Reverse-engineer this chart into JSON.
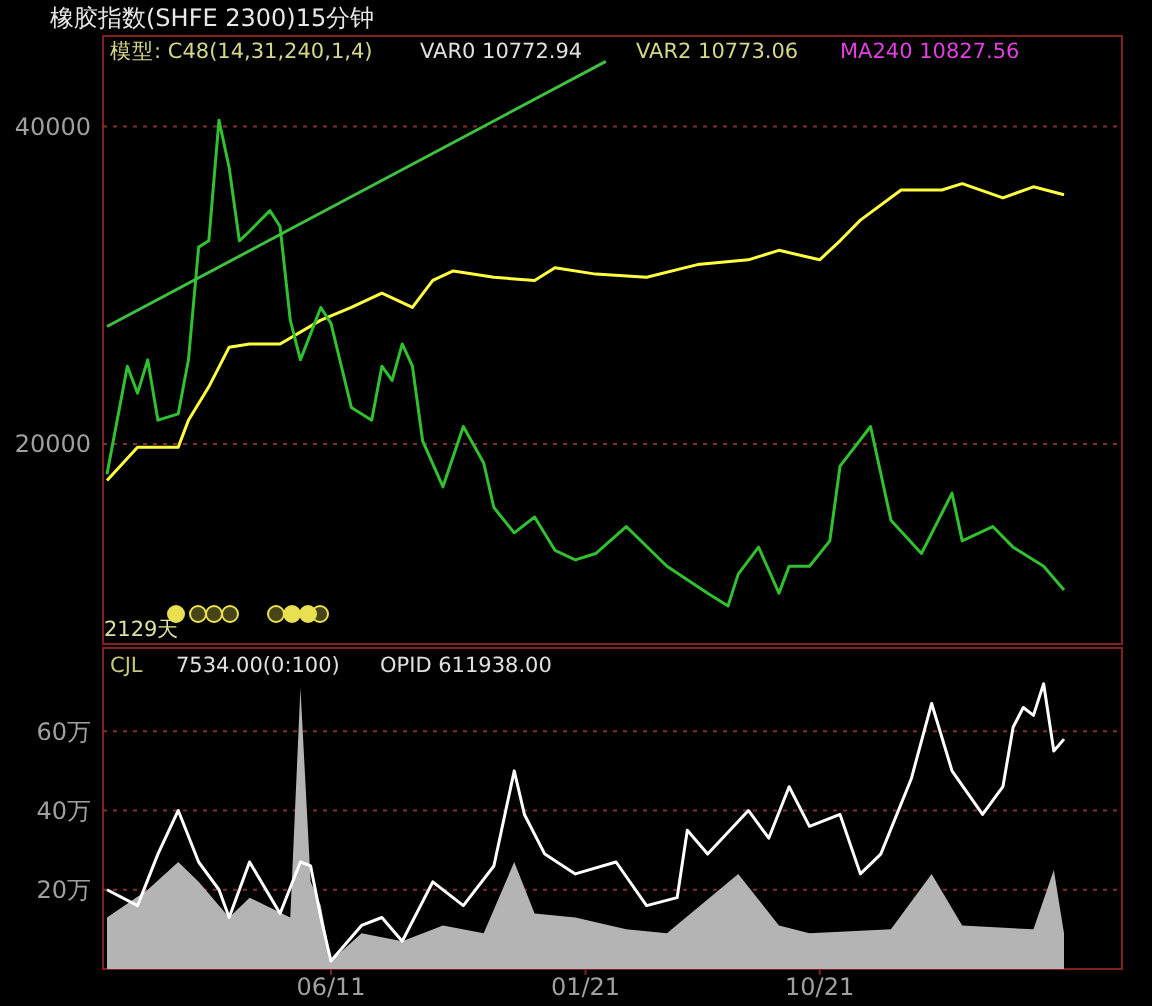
{
  "chart_data": [
    {
      "type": "line",
      "title": "橡胶指数(SHFE 2300)15分钟",
      "ylim": [
        7400,
        45700
      ],
      "yticks": [
        20000,
        40000
      ],
      "grid": "y",
      "tick_labels": "y",
      "categories": [
        null,
        null,
        null,
        null,
        null,
        null,
        null,
        null,
        null,
        null,
        null,
        null,
        null,
        null,
        null,
        null,
        null,
        null,
        null,
        null,
        null,
        null,
        null,
        null,
        null,
        null,
        null,
        null,
        null,
        null,
        null,
        null,
        null,
        null,
        null,
        null,
        null,
        null,
        null,
        null,
        null,
        null,
        null,
        null,
        null,
        null,
        null,
        null,
        null,
        null,
        null,
        null,
        null,
        null,
        null,
        null,
        null,
        null,
        null,
        null,
        null,
        null,
        null,
        null,
        null,
        null,
        null,
        null,
        null,
        null,
        null,
        null,
        null,
        null,
        null,
        null,
        null,
        null,
        null,
        null,
        null,
        null,
        null,
        null,
        null,
        null,
        null,
        null,
        null,
        null,
        null,
        null,
        null,
        null,
        null
      ],
      "annotations": [
        "模型: C48(14,31,240,1,4)",
        "VAR0 10772.94",
        "VAR2 10773.06",
        "MA240 10827.56",
        "2129天"
      ],
      "series": [
        {
          "color": "#ffff40",
          "values": [
            17700,
            null,
            null,
            19800,
            null,
            null,
            null,
            19800,
            21500,
            null,
            23600,
            null,
            26100,
            null,
            26300,
            null,
            null,
            26300,
            null,
            null,
            null,
            27800,
            null,
            null,
            28600,
            null,
            null,
            29500,
            null,
            null,
            28600,
            null,
            30300,
            null,
            30900,
            null,
            null,
            null,
            30500,
            null,
            null,
            null,
            30300,
            null,
            31100,
            null,
            null,
            null,
            30700,
            null,
            null,
            null,
            null,
            30500,
            null,
            null,
            null,
            null,
            31300,
            null,
            null,
            null,
            null,
            31600,
            null,
            null,
            32200,
            null,
            null,
            null,
            31600,
            null,
            32800,
            null,
            34100,
            null,
            null,
            null,
            36000,
            null,
            null,
            null,
            36000,
            null,
            36400,
            null,
            null,
            null,
            35500,
            null,
            null,
            36200,
            null,
            null,
            35700
          ]
        },
        {
          "color": "#30c030",
          "values": [
            18100,
            null,
            24900,
            23200,
            25300,
            21500,
            null,
            21900,
            25300,
            32400,
            32800,
            40400,
            37400,
            32800,
            33400,
            null,
            34700,
            33700,
            27800,
            25300,
            null,
            28600,
            27600,
            null,
            22300,
            null,
            21500,
            24900,
            24000,
            26300,
            24900,
            20200,
            null,
            17300,
            null,
            21100,
            null,
            18800,
            16000,
            null,
            14400,
            null,
            15400,
            null,
            13300,
            null,
            12700,
            null,
            13100,
            null,
            null,
            14800,
            null,
            null,
            null,
            12300,
            null,
            null,
            null,
            10600,
            null,
            9800,
            11800,
            null,
            13500,
            null,
            10600,
            12300,
            null,
            12300,
            null,
            13900,
            18600,
            null,
            null,
            21100,
            null,
            15200,
            null,
            null,
            13100,
            null,
            null,
            16900,
            13900,
            null,
            null,
            14800,
            null,
            13500,
            null,
            null,
            12300,
            null,
            10800
          ]
        },
        {
          "color": "#40c040",
          "values": [
            27400,
            null,
            null,
            null,
            null,
            null,
            null,
            null,
            null,
            null,
            null,
            null,
            null,
            null,
            null,
            null,
            null,
            null,
            null,
            null,
            null,
            null,
            null,
            null,
            null,
            null,
            null,
            null,
            null,
            null,
            null,
            null,
            null,
            null,
            null,
            null,
            null,
            null,
            null,
            null,
            null,
            null,
            null,
            null,
            null,
            null,
            null,
            null,
            null,
            44100,
            null,
            null,
            null,
            null,
            null,
            null,
            null,
            null,
            null,
            null,
            null,
            null,
            null,
            null,
            null,
            null,
            null,
            null,
            null,
            null,
            null,
            null,
            null,
            null,
            null,
            null,
            null,
            null,
            null,
            null,
            null,
            null,
            null,
            null,
            null,
            null,
            null,
            null,
            null,
            null,
            null,
            null,
            null,
            null,
            null
          ]
        }
      ]
    },
    {
      "type": "line",
      "ylim": [
        0,
        81
      ],
      "yticks": [
        {
          "value": 20,
          "label": "20万"
        },
        {
          "value": 40,
          "label": "40万"
        },
        {
          "value": 60,
          "label": "60万"
        }
      ],
      "grid": "y",
      "categories": [
        null,
        null,
        null,
        null,
        null,
        null,
        null,
        null,
        null,
        null,
        null,
        null,
        null,
        null,
        null,
        null,
        null,
        null,
        null,
        null,
        null,
        null,
        "06/11",
        null,
        null,
        null,
        null,
        null,
        null,
        null,
        null,
        null,
        null,
        null,
        null,
        null,
        null,
        null,
        null,
        null,
        null,
        null,
        null,
        null,
        null,
        null,
        null,
        "01/21",
        null,
        null,
        null,
        null,
        null,
        null,
        null,
        null,
        null,
        null,
        null,
        null,
        null,
        null,
        null,
        null,
        null,
        null,
        null,
        null,
        null,
        null,
        "10/21",
        null,
        null,
        null,
        null,
        null,
        null,
        null,
        null,
        null,
        null,
        null,
        null,
        null,
        null,
        null,
        null,
        null,
        null,
        null,
        null,
        null,
        null,
        null,
        null
      ],
      "annotations": [
        "CJL",
        "7534.00(0:100)",
        "OPID 611938.00"
      ],
      "series": [
        {
          "type": "area",
          "color": "#b4b4b4",
          "values": [
            13,
            null,
            null,
            null,
            20,
            null,
            null,
            27,
            null,
            22,
            null,
            null,
            13,
            null,
            18,
            null,
            null,
            null,
            13,
            71,
            22,
            16,
            2,
            null,
            null,
            9,
            null,
            null,
            null,
            7,
            null,
            null,
            null,
            11,
            null,
            null,
            null,
            9,
            null,
            null,
            27,
            null,
            14,
            null,
            null,
            null,
            13,
            null,
            null,
            null,
            null,
            10,
            null,
            null,
            null,
            9,
            null,
            null,
            null,
            null,
            null,
            null,
            24,
            null,
            null,
            null,
            11,
            null,
            null,
            9,
            null,
            null,
            null,
            null,
            null,
            null,
            null,
            10,
            null,
            null,
            null,
            24,
            null,
            null,
            11,
            null,
            null,
            null,
            null,
            null,
            null,
            10,
            null,
            25,
            9
          ]
        },
        {
          "color": "#ffffff",
          "values": [
            20,
            null,
            null,
            16,
            null,
            29,
            null,
            40,
            null,
            27,
            null,
            20,
            13,
            null,
            27,
            null,
            null,
            14,
            null,
            27,
            26,
            13,
            2,
            null,
            null,
            11,
            null,
            13,
            null,
            7,
            null,
            null,
            22,
            null,
            null,
            16,
            null,
            null,
            26,
            null,
            50,
            39,
            null,
            29,
            null,
            null,
            24,
            null,
            null,
            null,
            27,
            null,
            null,
            16,
            null,
            null,
            18,
            35,
            null,
            29,
            null,
            null,
            null,
            40,
            null,
            33,
            null,
            46,
            null,
            36,
            null,
            null,
            39,
            null,
            24,
            null,
            29,
            null,
            null,
            48,
            null,
            67,
            null,
            50,
            null,
            null,
            39,
            null,
            46,
            61,
            66,
            64,
            72,
            55,
            58
          ]
        }
      ]
    }
  ]
}
